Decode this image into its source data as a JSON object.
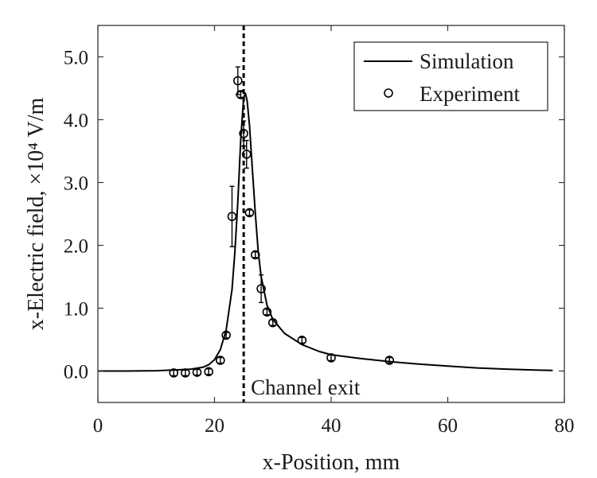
{
  "chart_data": {
    "type": "line",
    "title": "",
    "xlabel": "x-Position, mm",
    "ylabel": "x-Electric field, ×10⁴ V/m",
    "xlim": [
      0,
      80
    ],
    "ylim": [
      -0.5,
      5.5
    ],
    "x_ticks": [
      0,
      20,
      40,
      60,
      80
    ],
    "y_ticks": [
      0.0,
      1.0,
      2.0,
      3.0,
      4.0,
      5.0
    ],
    "x_tick_labels": [
      "0",
      "20",
      "40",
      "60",
      "80"
    ],
    "y_tick_labels": [
      "0.0",
      "1.0",
      "2.0",
      "3.0",
      "4.0",
      "5.0"
    ],
    "grid": false,
    "legend_position": "top-right",
    "series": [
      {
        "name": "Simulation",
        "kind": "line",
        "color": "#000000",
        "x": [
          0,
          5,
          10,
          14,
          16,
          18,
          19,
          20,
          21,
          22,
          23,
          23.5,
          24,
          24.5,
          25,
          25.3,
          25.6,
          26,
          26.5,
          27,
          27.5,
          28,
          29,
          30,
          32,
          35,
          38,
          40,
          45,
          50,
          55,
          60,
          65,
          70,
          75,
          78
        ],
        "y": [
          0.0,
          0.0,
          0.005,
          0.02,
          0.03,
          0.06,
          0.1,
          0.18,
          0.34,
          0.65,
          1.3,
          1.9,
          2.7,
          3.7,
          4.35,
          4.42,
          4.3,
          3.9,
          3.2,
          2.5,
          1.9,
          1.5,
          1.05,
          0.82,
          0.6,
          0.42,
          0.31,
          0.26,
          0.2,
          0.15,
          0.11,
          0.08,
          0.05,
          0.03,
          0.015,
          0.01
        ]
      },
      {
        "name": "Experiment",
        "kind": "scatter",
        "marker": "circle",
        "color": "#000000",
        "x": [
          13,
          15,
          17,
          19,
          21,
          22,
          23,
          24,
          24.5,
          25,
          25.5,
          26,
          27,
          28,
          29,
          30,
          35,
          40,
          50
        ],
        "y": [
          -0.03,
          -0.03,
          -0.02,
          -0.01,
          0.17,
          0.57,
          2.46,
          4.62,
          4.4,
          3.78,
          3.45,
          2.52,
          1.85,
          1.31,
          0.94,
          0.77,
          0.49,
          0.21,
          0.17
        ],
        "err": [
          0,
          0,
          0,
          0,
          0,
          0,
          0.48,
          0.22,
          0,
          0.2,
          0.22,
          0,
          0,
          0.22,
          0,
          0,
          0,
          0,
          0
        ]
      }
    ],
    "vline": {
      "x": 25,
      "style": "dashed",
      "label": "Channel exit"
    }
  }
}
